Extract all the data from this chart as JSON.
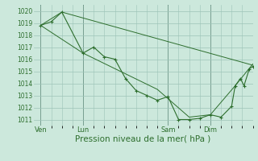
{
  "bg_color": "#cce8dc",
  "grid_color": "#9dc4b8",
  "line_color": "#2d6e2d",
  "xlabel": "Pression niveau de la mer( hPa )",
  "xlabel_fontsize": 7.5,
  "yticks": [
    1011,
    1012,
    1013,
    1014,
    1015,
    1016,
    1017,
    1018,
    1019,
    1020
  ],
  "ylim": [
    1010.5,
    1020.5
  ],
  "xtick_labels": [
    "Ven",
    "Lun",
    "Sam",
    "Dim"
  ],
  "xtick_positions": [
    0,
    24,
    72,
    96
  ],
  "xlim": [
    -4,
    120
  ],
  "line1_pts": [
    [
      0,
      1018.8
    ],
    [
      6,
      1019.1
    ],
    [
      12,
      1019.9
    ],
    [
      24,
      1016.5
    ],
    [
      30,
      1017.0
    ],
    [
      36,
      1016.2
    ],
    [
      42,
      1016.0
    ],
    [
      48,
      1014.4
    ],
    [
      54,
      1013.4
    ],
    [
      60,
      1013.0
    ],
    [
      66,
      1012.6
    ],
    [
      72,
      1012.9
    ],
    [
      78,
      1011.0
    ],
    [
      84,
      1011.0
    ],
    [
      90,
      1011.1
    ],
    [
      96,
      1011.4
    ],
    [
      102,
      1011.2
    ],
    [
      108,
      1012.1
    ],
    [
      110,
      1013.8
    ],
    [
      113,
      1014.4
    ],
    [
      115,
      1013.8
    ],
    [
      118,
      1015.2
    ],
    [
      120,
      1015.4
    ]
  ],
  "line2_pts": [
    [
      0,
      1018.8
    ],
    [
      24,
      1016.5
    ],
    [
      66,
      1013.5
    ],
    [
      84,
      1011.2
    ],
    [
      96,
      1011.4
    ],
    [
      110,
      1013.8
    ],
    [
      120,
      1015.6
    ]
  ],
  "line3_pts": [
    [
      0,
      1018.8
    ],
    [
      12,
      1019.9
    ],
    [
      120,
      1015.5
    ]
  ],
  "vlines_x": [
    0,
    24,
    72,
    96
  ],
  "figsize": [
    3.2,
    2.0
  ],
  "dpi": 100
}
